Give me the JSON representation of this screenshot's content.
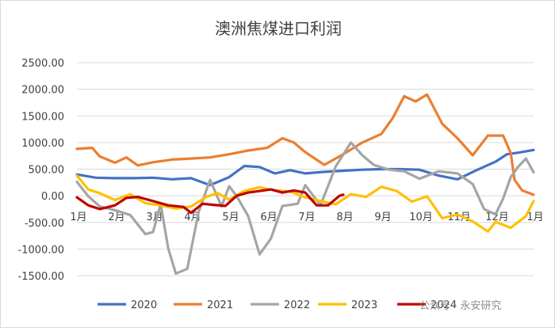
{
  "chart_data": {
    "type": "line",
    "title": "澳洲焦煤进口利润",
    "xlabel": "",
    "ylabel": "",
    "ylim": [
      -1500,
      2500
    ],
    "yticks": [
      "2500.00",
      "2000.00",
      "1500.00",
      "1000.00",
      "500.00",
      "0.00",
      "-500.00",
      "-1000.00",
      "-1500.00"
    ],
    "ytick_values": [
      2500,
      2000,
      1500,
      1000,
      500,
      0,
      -500,
      -1000,
      -1500
    ],
    "x_unit": "month index (0 = start of Jan, 12 = next Jan)",
    "xlim": [
      0,
      12
    ],
    "xticks": [
      "1月",
      "2月",
      "3月",
      "4月",
      "5月",
      "6月",
      "7月",
      "8月",
      "9月",
      "10月",
      "11月",
      "12月",
      "1月"
    ],
    "grid": true,
    "legend_position": "bottom",
    "series": [
      {
        "name": "2020",
        "color": "#4472C4",
        "points": [
          [
            0.0,
            400
          ],
          [
            0.5,
            340
          ],
          [
            1.0,
            330
          ],
          [
            1.5,
            330
          ],
          [
            2.0,
            340
          ],
          [
            2.5,
            310
          ],
          [
            3.0,
            330
          ],
          [
            3.5,
            200
          ],
          [
            4.0,
            350
          ],
          [
            4.4,
            560
          ],
          [
            4.8,
            540
          ],
          [
            5.2,
            420
          ],
          [
            5.6,
            480
          ],
          [
            6.0,
            420
          ],
          [
            6.5,
            450
          ],
          [
            7.0,
            470
          ],
          [
            7.5,
            490
          ],
          [
            8.0,
            500
          ],
          [
            8.5,
            500
          ],
          [
            9.0,
            490
          ],
          [
            9.5,
            380
          ],
          [
            10.0,
            310
          ],
          [
            10.5,
            480
          ],
          [
            11.0,
            640
          ],
          [
            11.3,
            780
          ],
          [
            11.6,
            810
          ],
          [
            12.0,
            860
          ]
        ]
      },
      {
        "name": "2021",
        "color": "#ED7D31",
        "points": [
          [
            0.0,
            880
          ],
          [
            0.4,
            900
          ],
          [
            0.6,
            740
          ],
          [
            1.0,
            620
          ],
          [
            1.3,
            720
          ],
          [
            1.6,
            570
          ],
          [
            2.0,
            630
          ],
          [
            2.5,
            680
          ],
          [
            3.0,
            700
          ],
          [
            3.5,
            720
          ],
          [
            4.0,
            780
          ],
          [
            4.5,
            850
          ],
          [
            5.0,
            900
          ],
          [
            5.4,
            1080
          ],
          [
            5.7,
            1000
          ],
          [
            6.0,
            820
          ],
          [
            6.5,
            580
          ],
          [
            7.0,
            780
          ],
          [
            7.5,
            1000
          ],
          [
            8.0,
            1160
          ],
          [
            8.3,
            1460
          ],
          [
            8.6,
            1870
          ],
          [
            8.9,
            1770
          ],
          [
            9.2,
            1900
          ],
          [
            9.6,
            1350
          ],
          [
            10.0,
            1080
          ],
          [
            10.4,
            760
          ],
          [
            10.8,
            1130
          ],
          [
            11.2,
            1130
          ],
          [
            11.4,
            800
          ],
          [
            11.5,
            300
          ],
          [
            11.7,
            100
          ],
          [
            12.0,
            20
          ]
        ]
      },
      {
        "name": "2022",
        "color": "#A5A5A5",
        "points": [
          [
            0.0,
            260
          ],
          [
            0.3,
            -10
          ],
          [
            0.6,
            -200
          ],
          [
            1.0,
            -270
          ],
          [
            1.4,
            -360
          ],
          [
            1.8,
            -720
          ],
          [
            2.0,
            -680
          ],
          [
            2.2,
            -150
          ],
          [
            2.4,
            -990
          ],
          [
            2.6,
            -1460
          ],
          [
            2.9,
            -1370
          ],
          [
            3.2,
            -300
          ],
          [
            3.5,
            300
          ],
          [
            3.8,
            -200
          ],
          [
            4.0,
            180
          ],
          [
            4.2,
            -10
          ],
          [
            4.5,
            -380
          ],
          [
            4.8,
            -1100
          ],
          [
            5.1,
            -800
          ],
          [
            5.4,
            -190
          ],
          [
            5.8,
            -150
          ],
          [
            6.0,
            200
          ],
          [
            6.4,
            -180
          ],
          [
            6.8,
            550
          ],
          [
            7.2,
            1000
          ],
          [
            7.5,
            760
          ],
          [
            7.8,
            580
          ],
          [
            8.2,
            490
          ],
          [
            8.6,
            460
          ],
          [
            9.0,
            320
          ],
          [
            9.5,
            460
          ],
          [
            10.0,
            420
          ],
          [
            10.4,
            220
          ],
          [
            10.7,
            -250
          ],
          [
            11.0,
            -350
          ],
          [
            11.2,
            -50
          ],
          [
            11.4,
            350
          ],
          [
            11.6,
            550
          ],
          [
            11.8,
            700
          ],
          [
            12.0,
            440
          ]
        ]
      },
      {
        "name": "2023",
        "color": "#FFC000",
        "points": [
          [
            0.0,
            380
          ],
          [
            0.3,
            120
          ],
          [
            0.6,
            50
          ],
          [
            1.0,
            -80
          ],
          [
            1.4,
            30
          ],
          [
            1.8,
            -140
          ],
          [
            2.2,
            -180
          ],
          [
            2.6,
            -240
          ],
          [
            3.0,
            -200
          ],
          [
            3.4,
            -20
          ],
          [
            3.7,
            50
          ],
          [
            4.0,
            -70
          ],
          [
            4.4,
            90
          ],
          [
            4.8,
            160
          ],
          [
            5.2,
            100
          ],
          [
            5.6,
            80
          ],
          [
            6.0,
            -30
          ],
          [
            6.4,
            -100
          ],
          [
            6.8,
            -160
          ],
          [
            7.2,
            30
          ],
          [
            7.6,
            -20
          ],
          [
            8.0,
            170
          ],
          [
            8.4,
            90
          ],
          [
            8.8,
            -110
          ],
          [
            9.2,
            -10
          ],
          [
            9.6,
            -420
          ],
          [
            10.0,
            -350
          ],
          [
            10.4,
            -480
          ],
          [
            10.8,
            -670
          ],
          [
            11.0,
            -490
          ],
          [
            11.4,
            -600
          ],
          [
            11.8,
            -380
          ],
          [
            12.0,
            -100
          ]
        ]
      },
      {
        "name": "2024",
        "color": "#C00000",
        "points": [
          [
            0.0,
            -30
          ],
          [
            0.3,
            -180
          ],
          [
            0.6,
            -250
          ],
          [
            1.0,
            -180
          ],
          [
            1.3,
            -40
          ],
          [
            1.6,
            -20
          ],
          [
            2.0,
            -100
          ],
          [
            2.4,
            -180
          ],
          [
            2.8,
            -210
          ],
          [
            3.0,
            -320
          ],
          [
            3.3,
            -150
          ],
          [
            3.6,
            -170
          ],
          [
            3.9,
            -190
          ],
          [
            4.2,
            0
          ],
          [
            4.5,
            60
          ],
          [
            4.8,
            90
          ],
          [
            5.1,
            120
          ],
          [
            5.4,
            60
          ],
          [
            5.7,
            100
          ],
          [
            6.0,
            60
          ],
          [
            6.3,
            -180
          ],
          [
            6.6,
            -180
          ],
          [
            6.9,
            0
          ],
          [
            7.0,
            20
          ]
        ]
      }
    ]
  },
  "watermark": "公众号 · 永安研究"
}
